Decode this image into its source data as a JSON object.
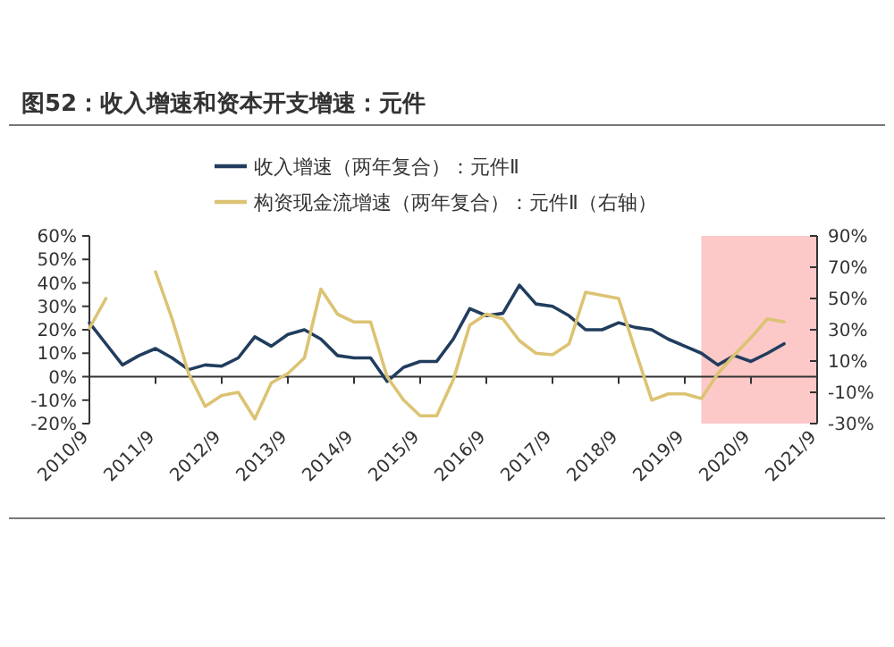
{
  "chart_data": {
    "type": "line",
    "title": "图52：收入增速和资本开支增速：元件",
    "x": [
      "2010-09",
      "2010-12",
      "2011-03",
      "2011-06",
      "2011-09",
      "2011-12",
      "2012-03",
      "2012-06",
      "2012-09",
      "2012-12",
      "2013-03",
      "2013-06",
      "2013-09",
      "2013-12",
      "2014-03",
      "2014-06",
      "2014-09",
      "2014-12",
      "2015-03",
      "2015-06",
      "2015-09",
      "2015-12",
      "2016-03",
      "2016-06",
      "2016-09",
      "2016-12",
      "2017-03",
      "2017-06",
      "2017-09",
      "2017-12",
      "2018-03",
      "2018-06",
      "2018-09",
      "2018-12",
      "2019-03",
      "2019-06",
      "2019-09",
      "2019-12",
      "2020-03",
      "2020-06",
      "2020-09",
      "2020-12",
      "2021-03"
    ],
    "series": [
      {
        "name": "收入增速（两年复合）：元件Ⅱ",
        "color": "#213d5e",
        "values": [
          23,
          14,
          5,
          9,
          12,
          8,
          3,
          5,
          4.5,
          8,
          17,
          13,
          18,
          20,
          16,
          9,
          8,
          8,
          -2,
          4,
          6.5,
          6.5,
          16,
          29,
          26,
          27,
          39,
          31,
          30,
          26,
          20,
          20,
          23,
          21,
          20,
          16,
          13,
          10,
          5,
          9,
          6.5,
          10,
          14
        ]
      },
      {
        "name": "构资现金流增速（两年复合）：元件Ⅱ（右轴）",
        "color": "#dcc373",
        "axis": "y2",
        "values": [
          31,
          50,
          null,
          null,
          67,
          37,
          2,
          -19,
          -12,
          -10,
          -27,
          -4,
          2,
          12,
          56,
          40,
          35,
          35,
          0,
          -15,
          -25,
          -25,
          -2,
          33,
          40,
          37,
          23,
          15,
          14,
          21,
          54,
          52,
          50,
          17,
          -15,
          -11,
          -11,
          -14,
          2,
          14,
          25,
          37,
          35
        ]
      }
    ],
    "xlim": [
      "2010-09",
      "2021-09"
    ],
    "xticks": [
      {
        "value": "2010-09",
        "label": "2010/9"
      },
      {
        "value": "2011-09",
        "label": "2011/9"
      },
      {
        "value": "2012-09",
        "label": "2012/9"
      },
      {
        "value": "2013-09",
        "label": "2013/9"
      },
      {
        "value": "2014-09",
        "label": "2014/9"
      },
      {
        "value": "2015-09",
        "label": "2015/9"
      },
      {
        "value": "2016-09",
        "label": "2016/9"
      },
      {
        "value": "2017-09",
        "label": "2017/9"
      },
      {
        "value": "2018-09",
        "label": "2018/9"
      },
      {
        "value": "2019-09",
        "label": "2019/9"
      },
      {
        "value": "2020-09",
        "label": "2020/9"
      },
      {
        "value": "2021-09",
        "label": "2021/9"
      }
    ],
    "ylim": [
      -20,
      60
    ],
    "yticks": [
      {
        "value": -20,
        "label": "-20%"
      },
      {
        "value": -10,
        "label": "-10%"
      },
      {
        "value": 0,
        "label": "0%"
      },
      {
        "value": 10,
        "label": "10%"
      },
      {
        "value": 20,
        "label": "20%"
      },
      {
        "value": 30,
        "label": "30%"
      },
      {
        "value": 40,
        "label": "40%"
      },
      {
        "value": 50,
        "label": "50%"
      },
      {
        "value": 60,
        "label": "60%"
      }
    ],
    "y2lim": [
      -30,
      90
    ],
    "y2ticks": [
      {
        "value": -30,
        "label": "-30%"
      },
      {
        "value": -10,
        "label": "-10%"
      },
      {
        "value": 10,
        "label": "10%"
      },
      {
        "value": 30,
        "label": "30%"
      },
      {
        "value": 50,
        "label": "50%"
      },
      {
        "value": 70,
        "label": "70%"
      },
      {
        "value": 90,
        "label": "90%"
      }
    ],
    "bands": [
      {
        "axis": "x",
        "from": "2019-12",
        "to": "2021-09",
        "color": "#fcc8c8"
      }
    ],
    "legend": "top"
  }
}
